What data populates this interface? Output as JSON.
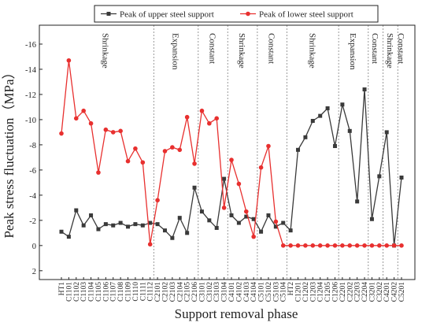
{
  "chart_data": {
    "type": "line",
    "xlabel": "Support removal phase",
    "ylabel": "Peak stress fluctuation（MPa）",
    "categories": [
      "HT1",
      "C1101",
      "C1102",
      "C1103",
      "C1104",
      "C1105",
      "C1106",
      "C1107",
      "C1108",
      "C1109",
      "C1110",
      "C1111",
      "C1112",
      "C2101",
      "C2102",
      "C2103",
      "C2104",
      "C2105",
      "C2106",
      "C3101",
      "C3102",
      "C3103",
      "C3104",
      "C4101",
      "C4102",
      "C4103",
      "C4104",
      "C5101",
      "C5102",
      "C5103",
      "C5104",
      "HT2",
      "C1201",
      "C1202",
      "C1203",
      "C1204",
      "C1205",
      "C1206",
      "C2201",
      "C2202",
      "C2203",
      "C2204",
      "C3201",
      "C3202",
      "C4201",
      "C4202",
      "C5201"
    ],
    "series": [
      {
        "name": "Peak of upper steel support",
        "color": "#3a3a3a",
        "marker": "square",
        "values": [
          -1.1,
          -0.7,
          -2.8,
          -1.6,
          -2.4,
          -1.3,
          -1.7,
          -1.6,
          -1.8,
          -1.5,
          -1.7,
          -1.6,
          -1.8,
          -1.7,
          -1.2,
          -0.6,
          -2.2,
          -1.0,
          -4.6,
          -2.7,
          -2.0,
          -1.4,
          -5.3,
          -2.4,
          -1.8,
          -2.3,
          -2.1,
          -1.1,
          -2.4,
          -1.5,
          -1.8,
          -1.2,
          -7.6,
          -8.6,
          -9.9,
          -10.3,
          -10.9,
          -7.9,
          -11.2,
          -9.1,
          -3.5,
          -12.4,
          -2.1,
          -5.5,
          -9.0,
          0,
          -5.4
        ]
      },
      {
        "name": "Peak of lower steel support",
        "color": "#e8302f",
        "marker": "circle",
        "values": [
          -8.9,
          -14.7,
          -10.1,
          -10.7,
          -9.7,
          -5.8,
          -9.2,
          -9.0,
          -9.1,
          -6.7,
          -7.7,
          -6.6,
          -0.1,
          -3.6,
          -7.5,
          -7.8,
          -7.6,
          -10.2,
          -6.5,
          -10.7,
          -9.7,
          -10.1,
          -3.0,
          -6.8,
          -4.9,
          -2.7,
          -0.7,
          -6.2,
          -7.9,
          -1.9,
          0,
          0,
          0,
          0,
          0,
          0,
          0,
          0,
          0,
          0,
          0,
          0,
          0,
          0,
          0,
          0,
          0
        ]
      }
    ],
    "phases": [
      "Shrinkage",
      "Expansion",
      "Constant",
      "Shrinkage",
      "Constant",
      "Shrinkage",
      "Expansion",
      "Constant",
      "Shrinkage",
      "Constant"
    ],
    "ylim": [
      2.7,
      -17.5
    ],
    "yticks": [
      -16,
      -14,
      -12,
      -10,
      -8,
      -6,
      -4,
      -2,
      0,
      2
    ],
    "legend": "top"
  }
}
